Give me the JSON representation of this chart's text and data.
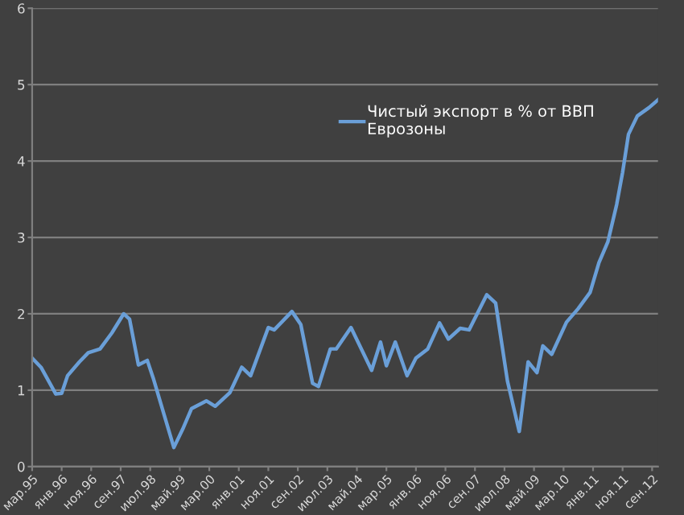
{
  "chart_data": {
    "type": "line",
    "x": [
      "1995-03",
      "1995-06",
      "1995-11",
      "1996-01",
      "1996-03",
      "1996-07",
      "1996-10",
      "1997-02",
      "1997-06",
      "1997-10",
      "1997-12",
      "1998-03",
      "1998-06",
      "1998-08",
      "1999-03",
      "1999-06",
      "1999-09",
      "2000-02",
      "2000-05",
      "2000-10",
      "2001-02",
      "2001-05",
      "2001-11",
      "2002-01",
      "2002-07",
      "2002-10",
      "2003-02",
      "2003-04",
      "2003-08",
      "2003-10",
      "2004-03",
      "2004-10",
      "2005-01",
      "2005-03",
      "2005-06",
      "2005-10",
      "2006-01",
      "2006-05",
      "2006-09",
      "2006-12",
      "2007-04",
      "2007-07",
      "2008-01",
      "2008-04",
      "2008-08",
      "2008-12",
      "2009-03",
      "2009-06",
      "2009-08",
      "2009-11",
      "2010-04",
      "2010-08",
      "2010-12",
      "2011-03",
      "2011-06",
      "2011-09",
      "2011-11",
      "2012-01",
      "2012-04",
      "2012-08",
      "2012-11"
    ],
    "series": [
      {
        "name": "Чистый экспорт в % от ВВП Еврозоны",
        "color": "#6a9fd8",
        "values": [
          1.42,
          1.3,
          0.95,
          0.96,
          1.19,
          1.37,
          1.49,
          1.54,
          1.75,
          2.0,
          1.93,
          1.33,
          1.39,
          1.16,
          0.25,
          0.49,
          0.76,
          0.86,
          0.79,
          0.97,
          1.3,
          1.19,
          1.82,
          1.79,
          2.03,
          1.86,
          1.09,
          1.05,
          1.54,
          1.54,
          1.82,
          1.26,
          1.63,
          1.32,
          1.63,
          1.19,
          1.42,
          1.54,
          1.88,
          1.67,
          1.81,
          1.79,
          2.25,
          2.14,
          1.12,
          0.46,
          1.37,
          1.23,
          1.58,
          1.47,
          1.89,
          2.07,
          2.28,
          2.67,
          2.94,
          3.43,
          3.85,
          4.35,
          4.59,
          4.7,
          4.8
        ]
      }
    ],
    "xlim": [
      "1995-03",
      "2012-11"
    ],
    "xticks": [
      {
        "value": "1995-03",
        "label": "мар.95"
      },
      {
        "value": "1996-01",
        "label": "янв.96"
      },
      {
        "value": "1996-11",
        "label": "ноя.96"
      },
      {
        "value": "1997-09",
        "label": "сен.97"
      },
      {
        "value": "1998-07",
        "label": "июл.98"
      },
      {
        "value": "1999-05",
        "label": "май.99"
      },
      {
        "value": "2000-03",
        "label": "мар.00"
      },
      {
        "value": "2001-01",
        "label": "янв.01"
      },
      {
        "value": "2001-11",
        "label": "ноя.01"
      },
      {
        "value": "2002-09",
        "label": "сен.02"
      },
      {
        "value": "2003-07",
        "label": "июл.03"
      },
      {
        "value": "2004-05",
        "label": "май.04"
      },
      {
        "value": "2005-03",
        "label": "мар.05"
      },
      {
        "value": "2006-01",
        "label": "янв.06"
      },
      {
        "value": "2006-11",
        "label": "ноя.06"
      },
      {
        "value": "2007-09",
        "label": "сен.07"
      },
      {
        "value": "2008-07",
        "label": "июл.08"
      },
      {
        "value": "2009-05",
        "label": "май.09"
      },
      {
        "value": "2010-03",
        "label": "мар.10"
      },
      {
        "value": "2011-01",
        "label": "янв.11"
      },
      {
        "value": "2011-11",
        "label": "ноя.11"
      },
      {
        "value": "2012-09",
        "label": "сен.12"
      }
    ],
    "ylim": [
      0,
      6
    ],
    "yticks": [
      0,
      1,
      2,
      3,
      4,
      5,
      6
    ],
    "grid": "y",
    "legend": "top",
    "marker": "none",
    "line_style": "solid"
  }
}
